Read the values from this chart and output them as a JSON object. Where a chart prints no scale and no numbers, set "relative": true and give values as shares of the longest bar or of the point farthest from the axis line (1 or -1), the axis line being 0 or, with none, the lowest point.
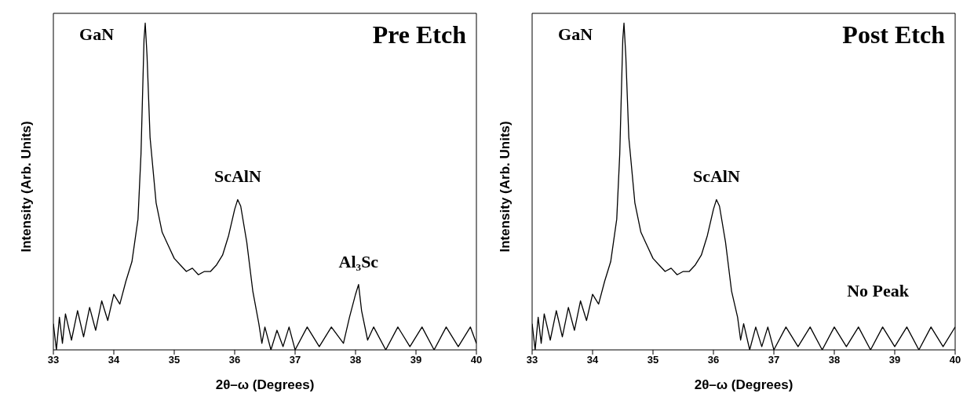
{
  "chart_data": [
    {
      "type": "line",
      "title": "Pre Etch",
      "xlabel": "2θ–ω (Degrees)",
      "ylabel": "Intensity (Arb. Units)",
      "relative": true,
      "xlim": [
        33,
        40
      ],
      "xticks": [
        33,
        34,
        35,
        36,
        37,
        38,
        39,
        40
      ],
      "series": [
        {
          "color": "#000000",
          "x": [
            33.0,
            33.05,
            33.1,
            33.15,
            33.2,
            33.3,
            33.4,
            33.5,
            33.6,
            33.7,
            33.8,
            33.9,
            34.0,
            34.1,
            34.2,
            34.3,
            34.4,
            34.45,
            34.5,
            34.52,
            34.55,
            34.6,
            34.7,
            34.8,
            34.9,
            35.0,
            35.1,
            35.2,
            35.3,
            35.4,
            35.5,
            35.6,
            35.7,
            35.8,
            35.9,
            36.0,
            36.05,
            36.1,
            36.2,
            36.3,
            36.4,
            36.45,
            36.5,
            36.6,
            36.7,
            36.8,
            36.9,
            37.0,
            37.2,
            37.4,
            37.6,
            37.8,
            37.9,
            38.0,
            38.05,
            38.1,
            38.2,
            38.3,
            38.5,
            38.7,
            38.9,
            39.1,
            39.3,
            39.5,
            39.7,
            39.9,
            40.0
          ],
          "values": [
            0.08,
            0.0,
            0.1,
            0.02,
            0.11,
            0.03,
            0.12,
            0.04,
            0.13,
            0.06,
            0.15,
            0.09,
            0.17,
            0.14,
            0.21,
            0.27,
            0.4,
            0.6,
            0.95,
            1.0,
            0.9,
            0.65,
            0.45,
            0.36,
            0.32,
            0.28,
            0.26,
            0.24,
            0.25,
            0.23,
            0.24,
            0.24,
            0.26,
            0.29,
            0.35,
            0.43,
            0.46,
            0.44,
            0.33,
            0.18,
            0.08,
            0.02,
            0.07,
            0.0,
            0.06,
            0.01,
            0.07,
            0.0,
            0.07,
            0.01,
            0.07,
            0.02,
            0.1,
            0.17,
            0.2,
            0.12,
            0.03,
            0.07,
            0.0,
            0.07,
            0.01,
            0.07,
            0.0,
            0.07,
            0.01,
            0.07,
            0.02
          ]
        }
      ],
      "annotations": [
        {
          "text": "GaN",
          "x": 34.52,
          "y": 1.0
        },
        {
          "text": "ScAlN",
          "x": 36.05,
          "y": 0.46
        },
        {
          "text": "Al₃Sc",
          "x": 38.05,
          "y": 0.2
        }
      ]
    },
    {
      "type": "line",
      "title": "Post Etch",
      "xlabel": "2θ–ω (Degrees)",
      "ylabel": "Intensity (Arb. Units)",
      "relative": true,
      "xlim": [
        33,
        40
      ],
      "xticks": [
        33,
        34,
        35,
        36,
        37,
        38,
        39,
        40
      ],
      "series": [
        {
          "color": "#000000",
          "x": [
            33.0,
            33.05,
            33.1,
            33.15,
            33.2,
            33.3,
            33.4,
            33.5,
            33.6,
            33.7,
            33.8,
            33.9,
            34.0,
            34.1,
            34.2,
            34.3,
            34.4,
            34.45,
            34.5,
            34.52,
            34.55,
            34.6,
            34.7,
            34.8,
            34.9,
            35.0,
            35.1,
            35.2,
            35.3,
            35.4,
            35.5,
            35.6,
            35.7,
            35.8,
            35.9,
            36.0,
            36.05,
            36.1,
            36.2,
            36.3,
            36.4,
            36.45,
            36.5,
            36.6,
            36.7,
            36.8,
            36.9,
            37.0,
            37.2,
            37.4,
            37.6,
            37.8,
            38.0,
            38.2,
            38.4,
            38.6,
            38.8,
            39.0,
            39.2,
            39.4,
            39.6,
            39.8,
            40.0
          ],
          "values": [
            0.08,
            0.0,
            0.1,
            0.02,
            0.11,
            0.03,
            0.12,
            0.04,
            0.13,
            0.06,
            0.15,
            0.09,
            0.17,
            0.14,
            0.21,
            0.27,
            0.4,
            0.6,
            0.95,
            1.0,
            0.9,
            0.65,
            0.45,
            0.36,
            0.32,
            0.28,
            0.26,
            0.24,
            0.25,
            0.23,
            0.24,
            0.24,
            0.26,
            0.29,
            0.35,
            0.43,
            0.46,
            0.44,
            0.33,
            0.18,
            0.1,
            0.03,
            0.08,
            0.0,
            0.07,
            0.01,
            0.07,
            0.0,
            0.07,
            0.01,
            0.07,
            0.0,
            0.07,
            0.01,
            0.07,
            0.0,
            0.07,
            0.01,
            0.07,
            0.0,
            0.07,
            0.01,
            0.07
          ]
        }
      ],
      "annotations": [
        {
          "text": "GaN",
          "x": 34.52,
          "y": 1.0
        },
        {
          "text": "ScAlN",
          "x": 36.05,
          "y": 0.46
        },
        "No Peak"
      ]
    }
  ]
}
